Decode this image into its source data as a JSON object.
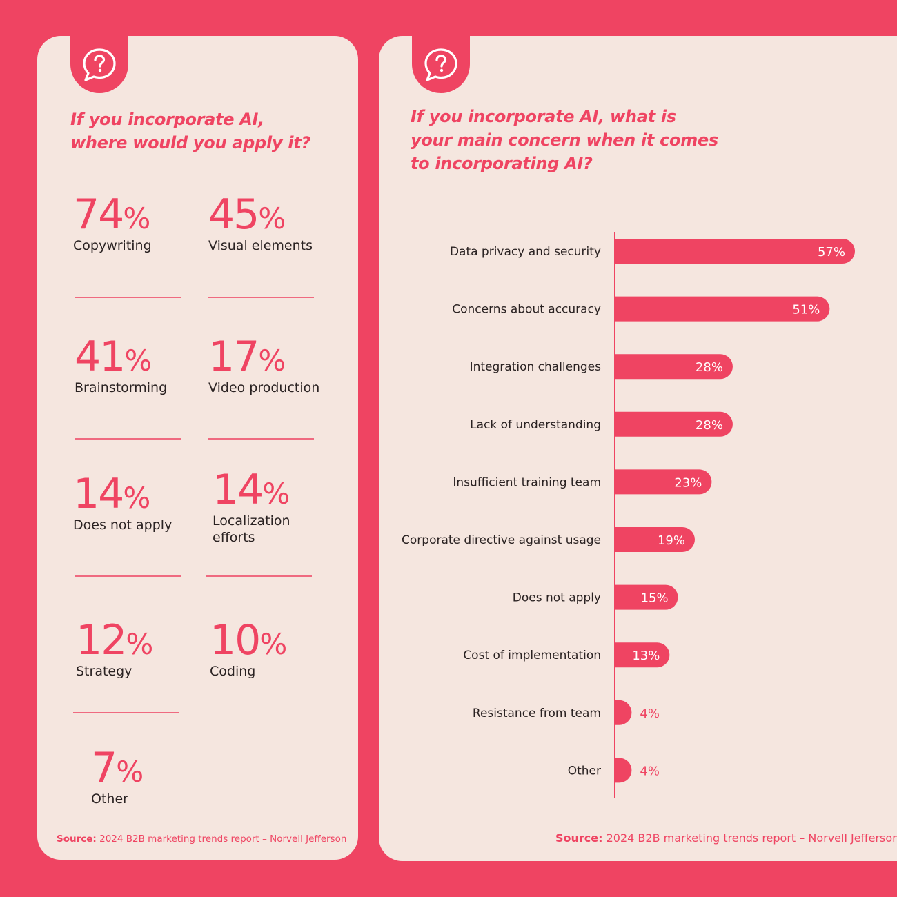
{
  "left": {
    "question_line1": "If you incorporate AI,",
    "question_line2": "where would you apply it?",
    "stats": [
      {
        "value": "74",
        "unit": "%",
        "label": "Copywriting"
      },
      {
        "value": "45",
        "unit": "%",
        "label": "Visual elements"
      },
      {
        "value": "41",
        "unit": "%",
        "label": "Brainstorming"
      },
      {
        "value": "17",
        "unit": "%",
        "label": "Video production"
      },
      {
        "value": "14",
        "unit": "%",
        "label": "Does not apply"
      },
      {
        "value": "14",
        "unit": "%",
        "label": "Localization\nefforts"
      },
      {
        "value": "12",
        "unit": "%",
        "label": "Strategy"
      },
      {
        "value": "10",
        "unit": "%",
        "label": "Coding"
      },
      {
        "value": "7",
        "unit": "%",
        "label": "Other"
      }
    ],
    "source_prefix": "Source:",
    "source_text": " 2024 B2B marketing trends report – Norvell Jefferson"
  },
  "right": {
    "question_line1": "If you incorporate AI, what is",
    "question_line2": "your main concern when it comes",
    "question_line3": "to incorporating AI?",
    "source_prefix": "Source:",
    "source_text": " 2024 B2B marketing trends report – Norvell Jefferson"
  },
  "icons": {
    "question": "question-bubble-icon"
  },
  "colors": {
    "accent": "#ef4462",
    "panel": "#f5e6df",
    "text": "#2a2222"
  },
  "chart_data": {
    "type": "bar",
    "orientation": "horizontal",
    "categories": [
      "Data privacy and security",
      "Concerns about accuracy",
      "Integration challenges",
      "Lack of understanding",
      "Insufficient training team",
      "Corporate directive against usage",
      "Does not apply",
      "Cost of implementation",
      "Resistance from team",
      "Other"
    ],
    "values": [
      57,
      51,
      28,
      28,
      23,
      19,
      15,
      13,
      4,
      4
    ],
    "value_labels": [
      "57%",
      "51%",
      "28%",
      "28%",
      "23%",
      "19%",
      "15%",
      "13%",
      "4%",
      "4%"
    ],
    "xlim": [
      0,
      57
    ],
    "title": "",
    "xlabel": "",
    "ylabel": "",
    "grid": false
  }
}
